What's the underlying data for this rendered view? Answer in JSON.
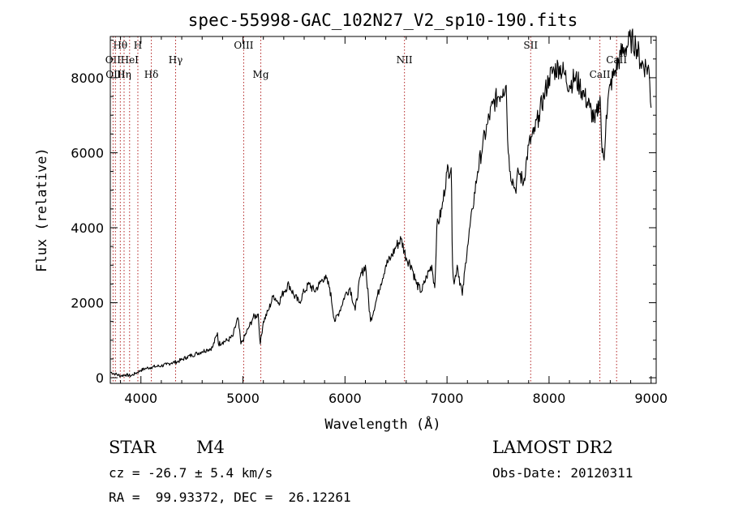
{
  "chart_data": {
    "type": "line",
    "title": "spec-55998-GAC_102N27_V2_sp10-190.fits",
    "xlabel": "Wavelength (Å)",
    "ylabel": "Flux (relative)",
    "xlim": [
      3700,
      9050
    ],
    "ylim": [
      -150,
      9100
    ],
    "xticks": [
      4000,
      5000,
      6000,
      7000,
      8000,
      9000
    ],
    "yticks": [
      0,
      2000,
      4000,
      6000,
      8000
    ],
    "grid": false,
    "line_color": "#000000",
    "marker_color": "#b22222",
    "lines": [
      {
        "label": "Hθ",
        "x": 3798,
        "row": 0
      },
      {
        "label": "H",
        "x": 3970,
        "row": 0
      },
      {
        "label": "OII",
        "x": 3727,
        "row": 1
      },
      {
        "label": "HeI",
        "x": 3889,
        "row": 1
      },
      {
        "label": "OIII",
        "x": 3750,
        "row": 2
      },
      {
        "label": "Hη",
        "x": 3835,
        "row": 2
      },
      {
        "label": "Hδ",
        "x": 4102,
        "row": 2
      },
      {
        "label": "Hγ",
        "x": 4340,
        "row": 1
      },
      {
        "label": "OIII",
        "x": 5007,
        "row": 0
      },
      {
        "label": "Mg",
        "x": 5175,
        "row": 2
      },
      {
        "label": "NII",
        "x": 6583,
        "row": 1
      },
      {
        "label": "SII",
        "x": 7820,
        "row": 0
      },
      {
        "label": "CaII",
        "x": 8498,
        "row": 2
      },
      {
        "label": "CaII",
        "x": 8662,
        "row": 1
      }
    ],
    "series": [
      {
        "x": [
          3700,
          3750,
          3800,
          3850,
          3900,
          3950,
          4000,
          4050,
          4100,
          4150,
          4200,
          4250,
          4300,
          4350,
          4400,
          4450,
          4500,
          4550,
          4600,
          4650,
          4700,
          4750,
          4760,
          4800,
          4850,
          4900,
          4950,
          4980,
          5000,
          5050,
          5100,
          5150,
          5170,
          5200,
          5250,
          5300,
          5350,
          5400,
          5450,
          5500,
          5550,
          5600,
          5650,
          5700,
          5750,
          5800,
          5850,
          5900,
          5950,
          6000,
          6050,
          6100,
          6150,
          6200,
          6250,
          6300,
          6350,
          6400,
          6450,
          6500,
          6550,
          6600,
          6650,
          6700,
          6750,
          6800,
          6850,
          6880,
          6900,
          6950,
          7000,
          7040,
          7055,
          7070,
          7100,
          7150,
          7200,
          7250,
          7300,
          7350,
          7400,
          7450,
          7500,
          7550,
          7580,
          7600,
          7620,
          7650,
          7670,
          7700,
          7750,
          7800,
          7850,
          7900,
          7950,
          8000,
          8050,
          8100,
          8150,
          8200,
          8250,
          8300,
          8350,
          8400,
          8450,
          8500,
          8520,
          8540,
          8560,
          8600,
          8650,
          8700,
          8750,
          8800,
          8850,
          8900,
          8950,
          8980,
          9000
        ],
        "values": [
          150,
          100,
          50,
          80,
          50,
          120,
          200,
          250,
          280,
          300,
          320,
          350,
          400,
          420,
          480,
          550,
          600,
          650,
          700,
          750,
          800,
          1200,
          900,
          950,
          1000,
          1100,
          1600,
          900,
          1000,
          1300,
          1600,
          1700,
          900,
          1500,
          1800,
          2200,
          2000,
          2300,
          2500,
          2200,
          2000,
          2300,
          2500,
          2300,
          2500,
          2700,
          2400,
          1500,
          1800,
          2200,
          2400,
          1800,
          2700,
          3000,
          1500,
          2000,
          2500,
          3000,
          3200,
          3500,
          3700,
          3200,
          3000,
          2500,
          2300,
          2700,
          3000,
          2400,
          4000,
          4500,
          5500,
          5600,
          3000,
          2500,
          3000,
          2200,
          3500,
          4500,
          5500,
          6200,
          6800,
          7300,
          7500,
          7700,
          7800,
          6000,
          5500,
          5200,
          5000,
          5500,
          5200,
          6200,
          6500,
          7000,
          7500,
          8000,
          8200,
          8300,
          8100,
          7800,
          8000,
          7800,
          7500,
          7200,
          6800,
          7500,
          6000,
          5800,
          7000,
          7800,
          8200,
          8600,
          8800,
          9000,
          8900,
          8400,
          8300,
          8200,
          7200
        ]
      }
    ]
  },
  "info": {
    "class_label": "STAR",
    "subclass": "M4",
    "survey": "LAMOST DR2",
    "redshift": "cz = -26.7 ± 5.4 km/s",
    "obs_date": "Obs-Date: 20120311",
    "coords": "RA =  99.93372, DEC =  26.12261"
  }
}
